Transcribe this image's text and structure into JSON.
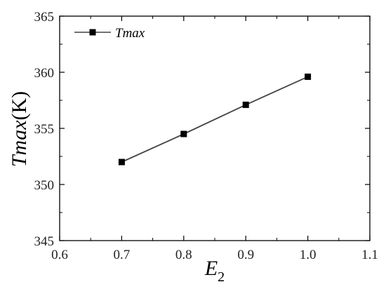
{
  "chart_data": {
    "type": "line",
    "x": [
      0.7,
      0.8,
      0.9,
      1.0
    ],
    "series": [
      {
        "name": "Tmax",
        "values": [
          352.0,
          354.5,
          357.1,
          359.6
        ]
      }
    ],
    "xlabel": {
      "base": "E",
      "sub": "2"
    },
    "ylabel": {
      "main": "Tmax",
      "unit": "(K)"
    },
    "xlim": [
      0.6,
      1.1
    ],
    "ylim": [
      345,
      365
    ],
    "xticks": [
      "0.6",
      "0.7",
      "0.8",
      "0.9",
      "1.0",
      "1.1"
    ],
    "yticks": [
      "345",
      "350",
      "355",
      "360",
      "365"
    ],
    "grid": false,
    "legend": "top-left",
    "line_color": "#444444",
    "marker": "square",
    "marker_color": "#000000"
  }
}
